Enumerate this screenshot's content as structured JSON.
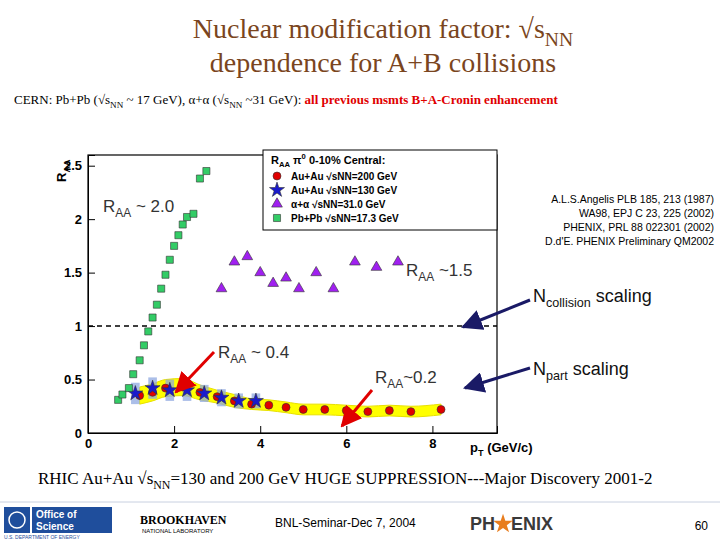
{
  "slide": {
    "title": [
      [
        {
          "text": "Nuclear modification factor: √s"
        },
        {
          "text": "NN",
          "style": "sub"
        }
      ],
      [
        {
          "text": "dependence for A+B collisions"
        }
      ]
    ],
    "subtitle": [
      {
        "text": "CERN: Pb+Pb (√s"
      },
      {
        "text": "NN",
        "style": "sub"
      },
      {
        "text": " ~ 17 GeV), α+α (√s"
      },
      {
        "text": "NN",
        "style": "sub"
      },
      {
        "text": " ~31 GeV): "
      },
      {
        "text": "all previous msmts B+A-Cronin enhancement",
        "style": "alert"
      }
    ],
    "headline": [
      {
        "text": "RHIC Au+Au √s"
      },
      {
        "text": "NN",
        "style": "sub"
      },
      {
        "text": "=130 and 200 GeV HUGE SUPPRESSION---Major Discovery 2001-2"
      }
    ],
    "footer": "BNL-Seminar-Dec 7, 2004",
    "page": "60",
    "logos": {
      "doe": [
        "Office of",
        "Science",
        "U.S. DEPARTMENT OF ENERGY"
      ],
      "bnl": [
        "BROOKHAVEN",
        "NATIONAL LABORATORY"
      ],
      "phenix": [
        "PH",
        "ENIX"
      ]
    }
  },
  "chart_data": {
    "type": "scatter",
    "x_label": [
      {
        "text": "p"
      },
      {
        "text": "T",
        "style": "sub"
      },
      {
        "text": " (GeV/c)"
      }
    ],
    "y_label": [
      {
        "text": "R"
      },
      {
        "text": "AA",
        "style": "sub"
      }
    ],
    "xlim": [
      0,
      9.5
    ],
    "xticks": [
      0,
      2,
      4,
      6,
      8
    ],
    "ylim": [
      0,
      2.6
    ],
    "yticks": [
      0,
      0.5,
      1,
      1.5,
      2,
      2.5
    ],
    "grid": false,
    "legend": "top-right",
    "legend_title": [
      {
        "text": "R"
      },
      {
        "text": "AA",
        "style": "sub"
      },
      {
        "text": " π"
      },
      {
        "text": "0",
        "style": "sup"
      },
      {
        "text": " 0-10% Central:"
      }
    ],
    "reference_line": 1,
    "series": [
      {
        "name": "Au+Au √sNN=200 GeV",
        "color": "#e00000",
        "marker": "circle",
        "type": "band",
        "x": [
          1.2,
          1.5,
          1.8,
          2.2,
          2.6,
          3.0,
          3.4,
          3.8,
          4.2,
          4.6,
          5.0,
          5.5,
          6.0,
          6.5,
          7.0,
          7.5,
          8.2
        ],
        "values": [
          0.35,
          0.38,
          0.42,
          0.43,
          0.38,
          0.34,
          0.3,
          0.27,
          0.26,
          0.24,
          0.22,
          0.22,
          0.21,
          0.2,
          0.21,
          0.2,
          0.22
        ],
        "errors": [
          0.08,
          0.08,
          0.08,
          0.08,
          0.07,
          0.06,
          0.06,
          0.05,
          0.05,
          0.05,
          0.05,
          0.05,
          0.05,
          0.05,
          0.05,
          0.05,
          0.05
        ]
      },
      {
        "name": "Au+Au √sNN=130 GeV",
        "color": "#1a1acc",
        "marker": "star",
        "type": "box",
        "x": [
          1.1,
          1.5,
          1.9,
          2.3,
          2.7,
          3.1,
          3.5,
          3.9
        ],
        "values": [
          0.37,
          0.42,
          0.4,
          0.4,
          0.37,
          0.33,
          0.3,
          0.3
        ],
        "errors": [
          0.1,
          0.1,
          0.1,
          0.1,
          0.08,
          0.08,
          0.07,
          0.07
        ]
      },
      {
        "name": "α+α √sNN=31.0 GeV",
        "color": "#a020f0",
        "marker": "triangle",
        "x": [
          3.1,
          3.4,
          3.7,
          4.0,
          4.3,
          4.6,
          4.9,
          5.3,
          5.7,
          6.2,
          6.7,
          7.2
        ],
        "values": [
          1.35,
          1.6,
          1.65,
          1.5,
          1.4,
          1.45,
          1.35,
          1.5,
          1.35,
          1.6,
          1.55,
          1.6
        ]
      },
      {
        "name": "Pb+Pb √sNN=17.3 GeV",
        "color": "#33cc66",
        "marker": "square",
        "x": [
          0.7,
          0.8,
          0.95,
          1.05,
          1.2,
          1.3,
          1.4,
          1.5,
          1.6,
          1.7,
          1.8,
          1.9,
          2.0,
          2.1,
          2.2,
          2.3,
          2.45,
          2.6,
          2.75
        ],
        "values": [
          0.31,
          0.36,
          0.42,
          0.55,
          0.68,
          0.82,
          0.95,
          1.08,
          1.2,
          1.35,
          1.48,
          1.62,
          1.75,
          1.85,
          1.95,
          2.02,
          2.05,
          2.38,
          2.45
        ]
      }
    ],
    "references": [
      "A.L.S.Angelis PLB 185, 213 (1987)",
      "WA98, EPJ C 23, 225 (2002)",
      "PHENIX, PRL 88 022301 (2002)",
      "D.d'E. PHENIX Preliminary QM2002"
    ],
    "annotations": [
      [
        {
          "text": "R"
        },
        {
          "text": "AA",
          "style": "sub"
        },
        {
          "text": " ~ 2.0"
        }
      ],
      [
        {
          "text": "R"
        },
        {
          "text": "AA",
          "style": "sub"
        },
        {
          "text": " ~1.5"
        }
      ],
      [
        {
          "text": "R"
        },
        {
          "text": "AA",
          "style": "sub"
        },
        {
          "text": " ~ 0.4"
        }
      ],
      [
        {
          "text": "R"
        },
        {
          "text": "AA",
          "style": "sub"
        },
        {
          "text": "~0.2"
        }
      ],
      [
        {
          "text": "N"
        },
        {
          "text": "collision",
          "style": "sub"
        },
        {
          "text": " scaling"
        }
      ],
      [
        {
          "text": "N"
        },
        {
          "text": "part",
          "style": "sub"
        },
        {
          "text": " scaling"
        }
      ]
    ]
  }
}
